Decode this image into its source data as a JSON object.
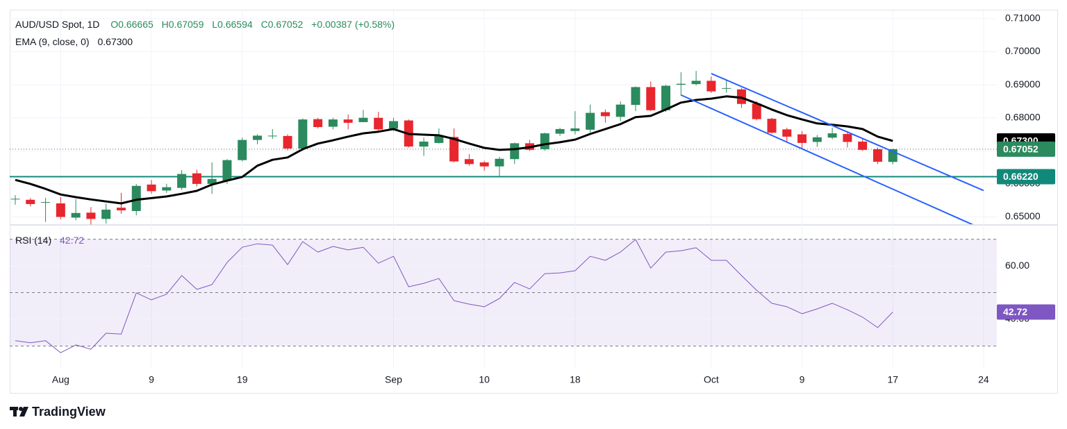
{
  "chart_data": [
    {
      "type": "candlestick",
      "title": "AUD/USD Spot, 1D",
      "ohlc_legend": [
        "O0.66665",
        "H0.67059",
        "L0.66594",
        "C0.67052",
        "+0.00387 (+0.58%)"
      ],
      "categories": [
        null,
        null,
        null,
        "Aug",
        null,
        null,
        null,
        null,
        null,
        "9",
        null,
        null,
        null,
        null,
        null,
        "19",
        null,
        null,
        null,
        null,
        null,
        null,
        null,
        null,
        null,
        "Sep",
        null,
        null,
        null,
        null,
        null,
        "10",
        null,
        null,
        null,
        null,
        null,
        "18",
        null,
        null,
        null,
        null,
        null,
        null,
        null,
        null,
        "Oct",
        null,
        null,
        null,
        null,
        null,
        "9",
        null,
        null,
        null,
        null,
        null,
        "17",
        null,
        null,
        null,
        null,
        null,
        "24"
      ],
      "open": [
        0.6553,
        0.6552,
        0.6543,
        0.6541,
        0.6498,
        0.6513,
        0.6494,
        0.6528,
        0.6518,
        0.6598,
        0.658,
        0.6588,
        0.6632,
        0.66,
        0.661,
        0.6672,
        0.6733,
        0.6745,
        0.6745,
        0.6707,
        0.6796,
        0.6773,
        0.6795,
        0.6787,
        0.68,
        0.6767,
        0.6792,
        0.6713,
        0.6724,
        0.6742,
        0.6675,
        0.6665,
        0.6653,
        0.6675,
        0.6723,
        0.6705,
        0.6752,
        0.676,
        0.6764,
        0.6817,
        0.6803,
        0.6839,
        0.6893,
        0.6823,
        0.69,
        0.6902,
        0.6912,
        0.689,
        0.6886,
        0.6843,
        0.6797,
        0.6765,
        0.675,
        0.6727,
        0.674,
        0.6751,
        0.6728,
        0.6705,
        0.66665,
        null,
        null,
        null,
        null,
        null,
        null
      ],
      "high": [
        0.6566,
        0.6557,
        0.6558,
        0.656,
        0.6554,
        0.653,
        0.654,
        0.6573,
        0.66,
        0.6612,
        0.66,
        0.6642,
        0.6643,
        0.6665,
        0.6675,
        0.674,
        0.675,
        0.6766,
        0.675,
        0.6798,
        0.68,
        0.68,
        0.681,
        0.6824,
        0.6818,
        0.68,
        0.6795,
        0.674,
        0.6768,
        0.6768,
        0.669,
        0.667,
        0.6682,
        0.6725,
        0.6733,
        0.6755,
        0.677,
        0.682,
        0.684,
        0.6825,
        0.685,
        0.6895,
        0.691,
        0.69,
        0.6938,
        0.6942,
        0.6925,
        0.6915,
        0.689,
        0.685,
        0.68,
        0.677,
        0.676,
        0.6748,
        0.677,
        0.676,
        0.6738,
        0.671,
        0.67059,
        null,
        null,
        null,
        null,
        null,
        null
      ],
      "low": [
        0.6537,
        0.6532,
        0.6485,
        0.6493,
        0.649,
        0.6477,
        0.648,
        0.651,
        0.6505,
        0.657,
        0.6573,
        0.6582,
        0.6592,
        0.657,
        0.66,
        0.6668,
        0.672,
        0.6736,
        0.6702,
        0.67,
        0.6768,
        0.6765,
        0.6765,
        0.6787,
        0.676,
        0.676,
        0.671,
        0.6685,
        0.6722,
        0.6665,
        0.6655,
        0.664,
        0.6622,
        0.666,
        0.67,
        0.67,
        0.6745,
        0.675,
        0.6755,
        0.6785,
        0.679,
        0.682,
        0.682,
        0.6818,
        0.6867,
        0.6898,
        0.6875,
        0.6876,
        0.683,
        0.6792,
        0.6752,
        0.6728,
        0.6705,
        0.6712,
        0.6735,
        0.671,
        0.67,
        0.666,
        0.66594,
        null,
        null,
        null,
        null,
        null,
        null
      ],
      "close": [
        0.6555,
        0.6539,
        0.6545,
        0.65,
        0.6512,
        0.6494,
        0.6522,
        0.652,
        0.6594,
        0.6578,
        0.659,
        0.663,
        0.66,
        0.6615,
        0.6672,
        0.6733,
        0.6746,
        0.6746,
        0.6707,
        0.6795,
        0.6772,
        0.6795,
        0.6785,
        0.68,
        0.6765,
        0.679,
        0.6713,
        0.6728,
        0.6745,
        0.6668,
        0.666,
        0.6653,
        0.6676,
        0.6723,
        0.6703,
        0.6753,
        0.6766,
        0.6768,
        0.6815,
        0.6805,
        0.684,
        0.6893,
        0.6823,
        0.6897,
        0.6903,
        0.6912,
        0.688,
        0.689,
        0.6842,
        0.6796,
        0.6755,
        0.6743,
        0.6724,
        0.6741,
        0.6753,
        0.6727,
        0.6703,
        0.6667,
        0.67052,
        null,
        null,
        null,
        null,
        null,
        null
      ],
      "up_color": "#2b8a5e",
      "down_color": "#e8262d",
      "ema": {
        "name": "EMA (9, close, 0)",
        "value_label": "0.67300",
        "value": 0.673,
        "color": "#000000",
        "values": [
          0.6612,
          0.66,
          0.6585,
          0.6568,
          0.656,
          0.6553,
          0.6547,
          0.6541,
          0.6552,
          0.6557,
          0.6562,
          0.657,
          0.6579,
          0.6598,
          0.661,
          0.6621,
          0.6655,
          0.6673,
          0.668,
          0.6705,
          0.6722,
          0.6732,
          0.6743,
          0.6753,
          0.6758,
          0.6766,
          0.6751,
          0.6749,
          0.6747,
          0.6736,
          0.6722,
          0.6709,
          0.6703,
          0.6705,
          0.6711,
          0.672,
          0.6726,
          0.6734,
          0.6751,
          0.6766,
          0.6781,
          0.6802,
          0.6806,
          0.6825,
          0.6846,
          0.6854,
          0.6858,
          0.6865,
          0.6861,
          0.6844,
          0.6825,
          0.6808,
          0.6795,
          0.6783,
          0.6779,
          0.6774,
          0.6766,
          0.6743,
          0.673,
          null,
          null,
          null,
          null,
          null,
          null
        ]
      },
      "last_price": {
        "value": 0.67052,
        "label": "0.67052",
        "color": "#2b8a5e"
      },
      "support": {
        "value": 0.6622,
        "label": "0.66220",
        "color": "#11897a"
      },
      "trendlines": [
        {
          "x": [
            46,
            64
          ],
          "y": [
            0.6934,
            0.658
          ],
          "color": "#2962ff"
        },
        {
          "x": [
            44,
            64
          ],
          "y": [
            0.6869,
            0.6462
          ],
          "color": "#2962ff"
        }
      ],
      "ylim": [
        0.6478,
        0.7125
      ],
      "yticks": [
        {
          "value": 0.71,
          "label": "0.71000"
        },
        {
          "value": 0.7,
          "label": "0.70000"
        },
        {
          "value": 0.69,
          "label": "0.69000"
        },
        {
          "value": 0.68,
          "label": "0.68000"
        },
        {
          "value": 0.67,
          "label": "0.67000"
        },
        {
          "value": 0.66,
          "label": "0.66000"
        },
        {
          "value": 0.65,
          "label": "0.65000"
        }
      ],
      "grid": true
    },
    {
      "type": "line",
      "name": "RSI (14)",
      "color": "#7e57c2",
      "values": [
        32.0,
        31.2,
        32.0,
        27.5,
        30.4,
        28.8,
        34.8,
        34.5,
        49.9,
        47.3,
        49.4,
        56.4,
        51.2,
        53.0,
        61.3,
        67.0,
        68.3,
        67.8,
        60.5,
        69.1,
        65.2,
        67.3,
        66.0,
        67.0,
        61.0,
        63.6,
        52.2,
        53.5,
        55.3,
        47.0,
        45.7,
        44.7,
        47.8,
        53.8,
        51.4,
        57.1,
        57.4,
        58.2,
        63.6,
        62.1,
        65.2,
        69.9,
        59.2,
        65.2,
        65.7,
        66.8,
        62.1,
        62.1,
        56.4,
        50.9,
        46.0,
        44.7,
        42.1,
        43.9,
        46.0,
        43.6,
        40.8,
        36.9,
        42.72,
        null,
        null,
        null,
        null,
        null,
        null
      ],
      "band": [
        30,
        70
      ],
      "levels": [
        70,
        50,
        30
      ],
      "ylim": [
        21.8,
        75.1
      ],
      "yticks": [
        {
          "value": 60,
          "label": "60.00"
        },
        {
          "value": 40,
          "label": "40.00"
        }
      ],
      "grid": true
    }
  ],
  "footer": {
    "brand": "TradingView"
  }
}
